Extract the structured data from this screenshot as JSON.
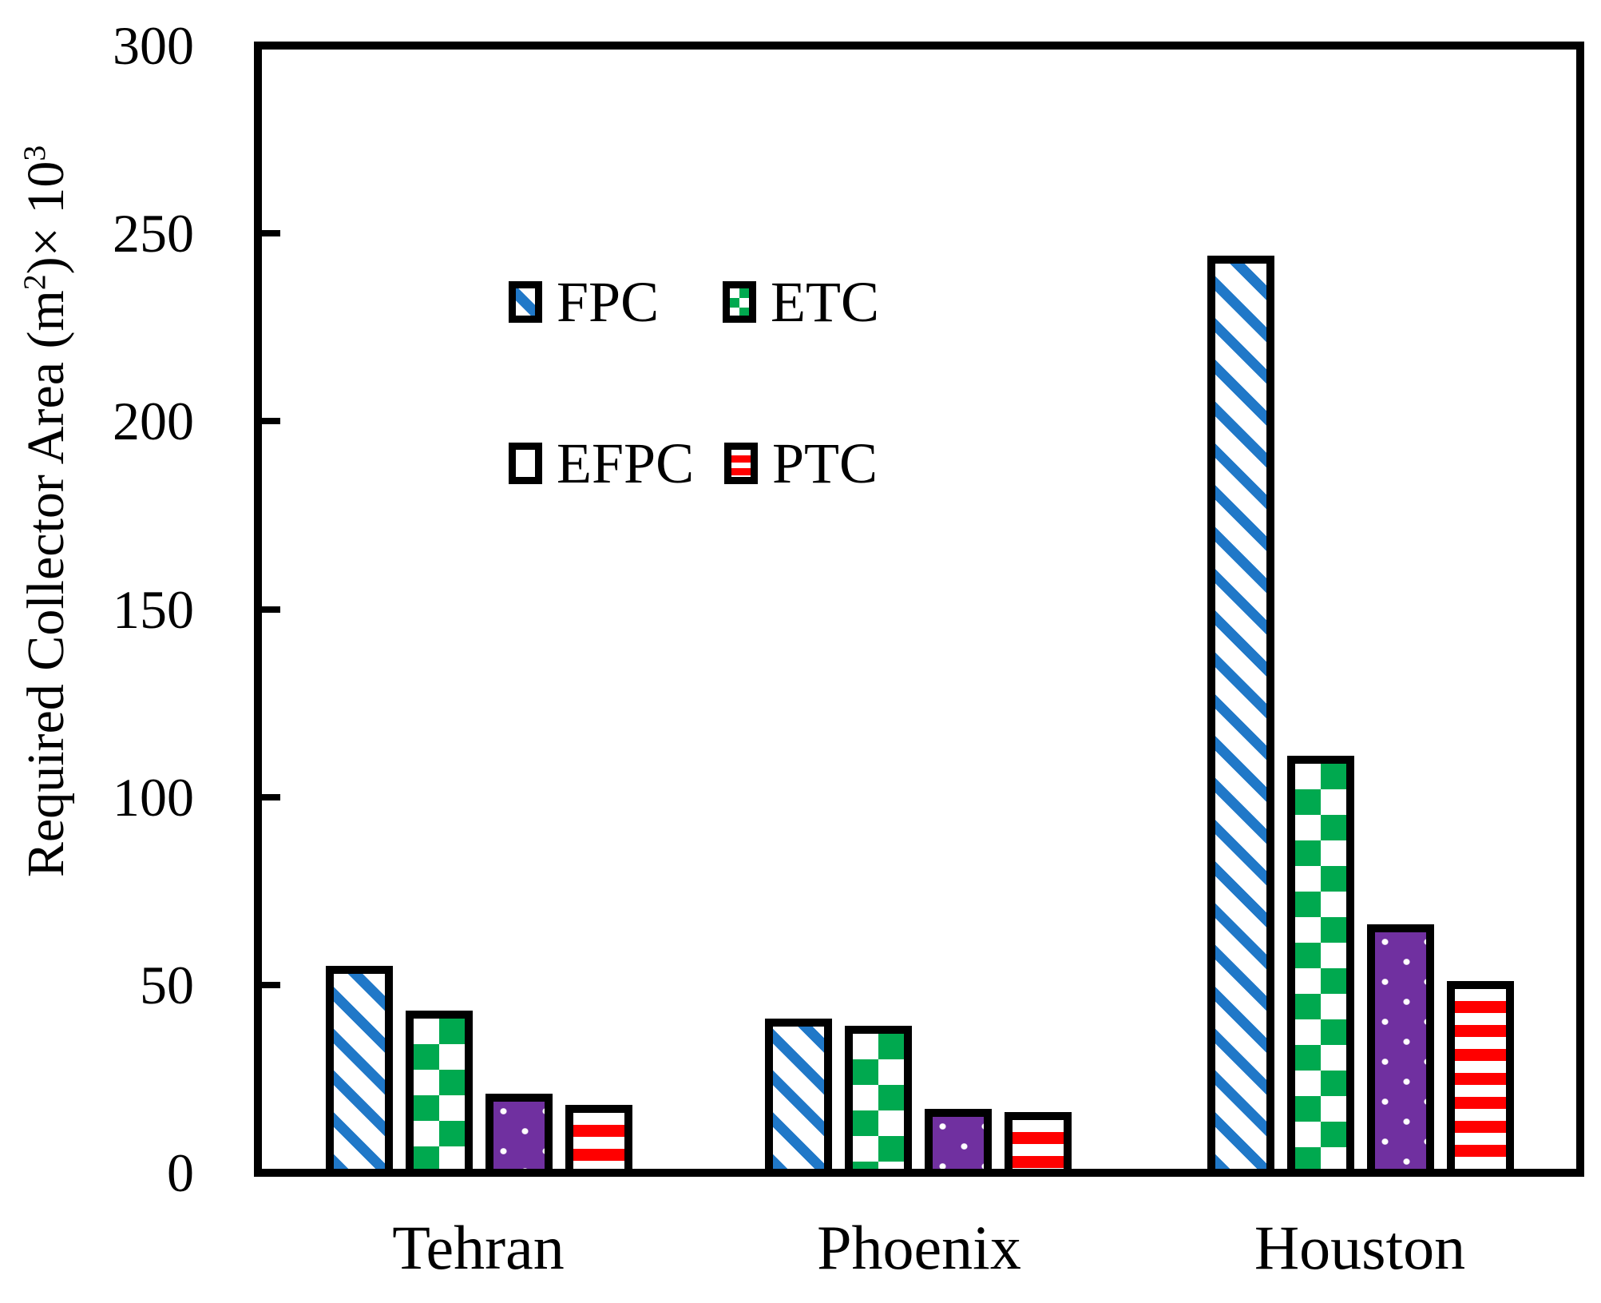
{
  "styles": {
    "background": "#ffffff",
    "axis_color": "#000000",
    "bar_border_color": "#000000"
  },
  "chart_data": {
    "type": "bar",
    "title": "",
    "xlabel": "",
    "ylabel": "Required Collector Area (m²)× 10³",
    "ylabel_segments": [
      {
        "text": "Required Collector Area (m"
      },
      {
        "text": "2",
        "sup": true
      },
      {
        "text": ")× 10"
      },
      {
        "text": "3",
        "sup": true
      }
    ],
    "categories": [
      "Tehran",
      "Phoenix",
      "Houston"
    ],
    "series": [
      {
        "name": "FPC",
        "color": "#2078C8",
        "pattern": "diagonal-stripes",
        "values": [
          54,
          40,
          243
        ]
      },
      {
        "name": "ETC",
        "color": "#00A94F",
        "pattern": "checkerboard",
        "values": [
          42,
          38,
          110
        ]
      },
      {
        "name": "EFPC",
        "color": "#7030A0",
        "pattern": "dots",
        "values": [
          20,
          16,
          65
        ]
      },
      {
        "name": "PTC",
        "color": "#FF0000",
        "pattern": "horizontal-stripes",
        "values": [
          17,
          15,
          50
        ]
      }
    ],
    "ylim": [
      0,
      300
    ],
    "yticks": [
      0,
      50,
      100,
      150,
      200,
      250,
      300
    ],
    "grid": false,
    "legend_position": "upper-left-inside"
  }
}
